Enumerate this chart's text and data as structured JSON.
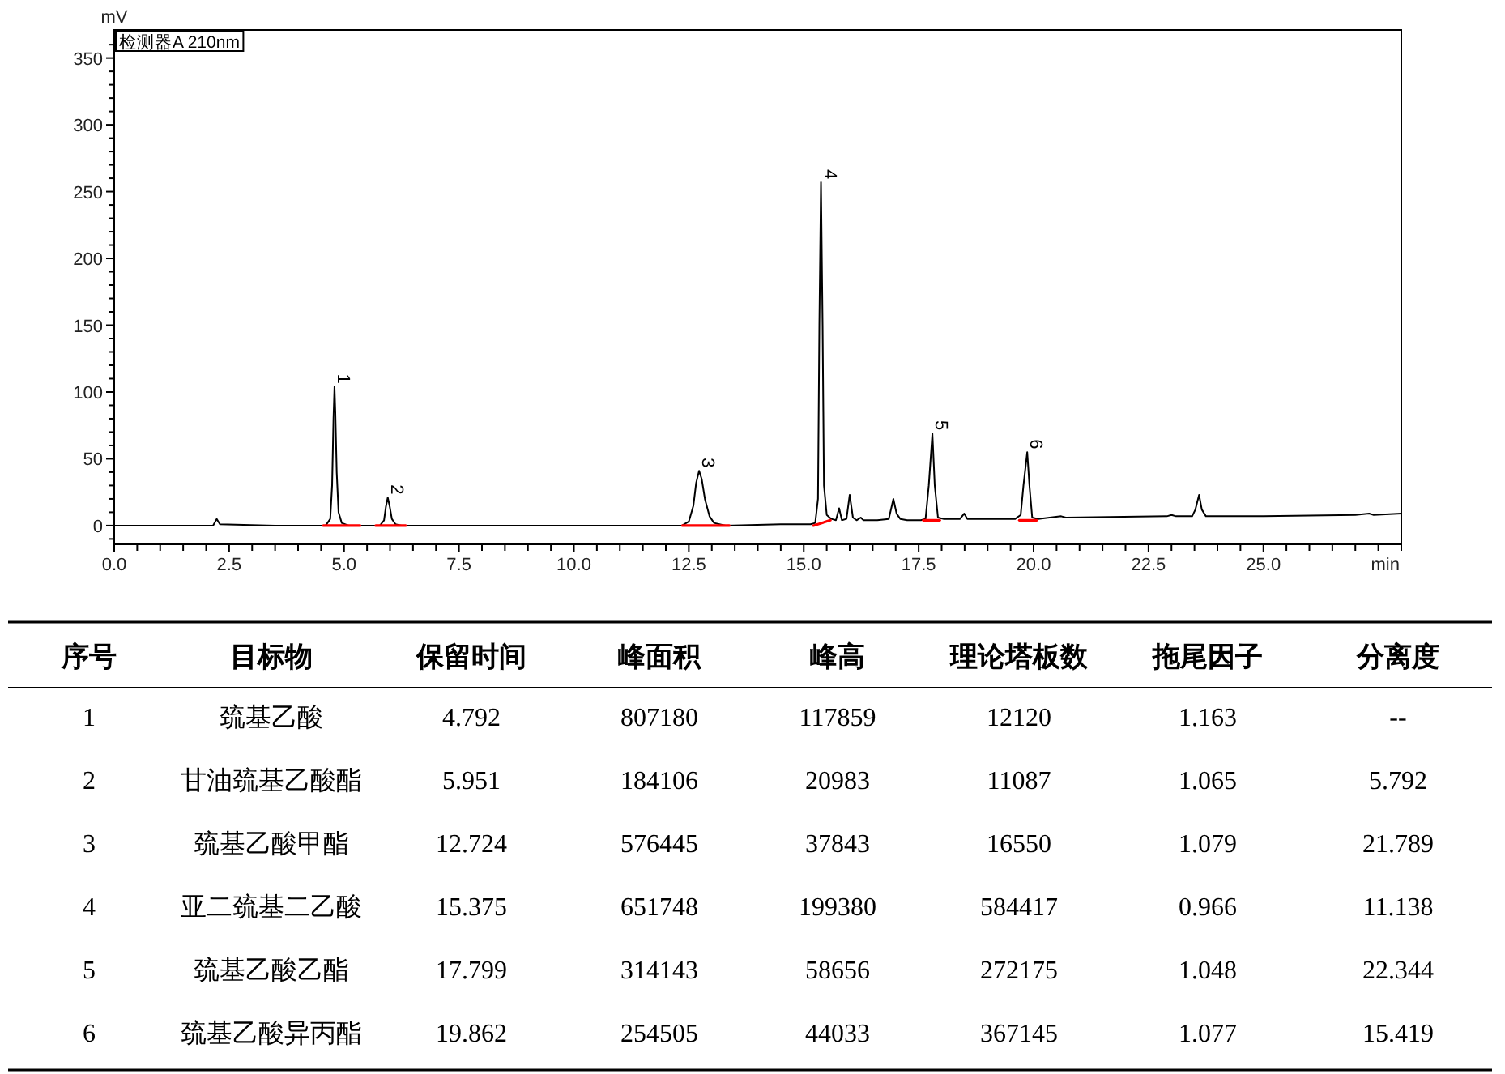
{
  "chart_data": [
    {
      "type": "line",
      "xlabel": "min",
      "ylabel": "mV",
      "xlim": [
        0,
        28
      ],
      "ylim": [
        -14,
        371
      ],
      "xticks": [
        {
          "value": 0,
          "label": "0.0"
        },
        {
          "value": 0.5,
          "label": null
        },
        {
          "value": 1,
          "label": null
        },
        {
          "value": 1.5,
          "label": null
        },
        {
          "value": 2,
          "label": null
        },
        {
          "value": 2.5,
          "label": "2.5"
        },
        {
          "value": 3,
          "label": null
        },
        {
          "value": 3.5,
          "label": null
        },
        {
          "value": 4,
          "label": null
        },
        {
          "value": 4.5,
          "label": null
        },
        {
          "value": 5,
          "label": "5.0"
        },
        {
          "value": 5.5,
          "label": null
        },
        {
          "value": 6,
          "label": null
        },
        {
          "value": 6.5,
          "label": null
        },
        {
          "value": 7,
          "label": null
        },
        {
          "value": 7.5,
          "label": "7.5"
        },
        {
          "value": 8,
          "label": null
        },
        {
          "value": 8.5,
          "label": null
        },
        {
          "value": 9,
          "label": null
        },
        {
          "value": 9.5,
          "label": null
        },
        {
          "value": 10,
          "label": "10.0"
        },
        {
          "value": 10.5,
          "label": null
        },
        {
          "value": 11,
          "label": null
        },
        {
          "value": 11.5,
          "label": null
        },
        {
          "value": 12,
          "label": null
        },
        {
          "value": 12.5,
          "label": "12.5"
        },
        {
          "value": 13,
          "label": null
        },
        {
          "value": 13.5,
          "label": null
        },
        {
          "value": 14,
          "label": null
        },
        {
          "value": 14.5,
          "label": null
        },
        {
          "value": 15,
          "label": "15.0"
        },
        {
          "value": 15.5,
          "label": null
        },
        {
          "value": 16,
          "label": null
        },
        {
          "value": 16.5,
          "label": null
        },
        {
          "value": 17,
          "label": null
        },
        {
          "value": 17.5,
          "label": "17.5"
        },
        {
          "value": 18,
          "label": null
        },
        {
          "value": 18.5,
          "label": null
        },
        {
          "value": 19,
          "label": null
        },
        {
          "value": 19.5,
          "label": null
        },
        {
          "value": 20,
          "label": "20.0"
        },
        {
          "value": 20.5,
          "label": null
        },
        {
          "value": 21,
          "label": null
        },
        {
          "value": 21.5,
          "label": null
        },
        {
          "value": 22,
          "label": null
        },
        {
          "value": 22.5,
          "label": "22.5"
        },
        {
          "value": 23,
          "label": null
        },
        {
          "value": 23.5,
          "label": null
        },
        {
          "value": 24,
          "label": null
        },
        {
          "value": 24.5,
          "label": null
        },
        {
          "value": 25,
          "label": "25.0"
        },
        {
          "value": 25.5,
          "label": null
        },
        {
          "value": 26,
          "label": null
        },
        {
          "value": 26.5,
          "label": null
        },
        {
          "value": 27,
          "label": null
        },
        {
          "value": 27.5,
          "label": null
        },
        {
          "value": 28,
          "label": null
        }
      ],
      "yticks": [
        {
          "value": -10,
          "label": null
        },
        0,
        {
          "value": 10,
          "label": null
        },
        {
          "value": 20,
          "label": null
        },
        {
          "value": 30,
          "label": null
        },
        {
          "value": 40,
          "label": null
        },
        50,
        {
          "value": 60,
          "label": null
        },
        {
          "value": 70,
          "label": null
        },
        {
          "value": 80,
          "label": null
        },
        {
          "value": 90,
          "label": null
        },
        100,
        {
          "value": 110,
          "label": null
        },
        {
          "value": 120,
          "label": null
        },
        {
          "value": 130,
          "label": null
        },
        {
          "value": 140,
          "label": null
        },
        150,
        {
          "value": 160,
          "label": null
        },
        {
          "value": 170,
          "label": null
        },
        {
          "value": 180,
          "label": null
        },
        {
          "value": 190,
          "label": null
        },
        200,
        {
          "value": 210,
          "label": null
        },
        {
          "value": 220,
          "label": null
        },
        {
          "value": 230,
          "label": null
        },
        {
          "value": 240,
          "label": null
        },
        250,
        {
          "value": 260,
          "label": null
        },
        {
          "value": 270,
          "label": null
        },
        {
          "value": 280,
          "label": null
        },
        {
          "value": 290,
          "label": null
        },
        300,
        {
          "value": 310,
          "label": null
        },
        {
          "value": 320,
          "label": null
        },
        {
          "value": 330,
          "label": null
        },
        {
          "value": 340,
          "label": null
        },
        350,
        {
          "value": 360,
          "label": null
        }
      ],
      "annotations": [
        "检测器A 210nm",
        {
          "text": "1",
          "x": 4.792,
          "y": 104
        },
        {
          "text": "2",
          "x": 5.951,
          "y": 21
        },
        {
          "text": "3",
          "x": 12.724,
          "y": 41
        },
        {
          "text": "4",
          "x": 15.375,
          "y": 257
        },
        {
          "text": "5",
          "x": 17.799,
          "y": 69
        },
        {
          "text": "6",
          "x": 19.862,
          "y": 55
        }
      ],
      "series": [
        {
          "color": "#000000",
          "x": [
            0,
            2.15,
            2.23,
            2.3,
            3.5,
            4.6,
            4.7,
            4.74,
            4.77,
            4.792,
            4.81,
            4.84,
            4.88,
            4.95,
            5.1,
            5.78,
            5.87,
            5.91,
            5.951,
            5.99,
            6.04,
            6.12,
            6.25,
            9,
            12.35,
            12.5,
            12.6,
            12.66,
            12.724,
            12.78,
            12.85,
            12.95,
            13.05,
            13.3,
            14.5,
            15.15,
            15.25,
            15.31,
            15.34,
            15.375,
            15.41,
            15.44,
            15.5,
            15.6,
            15.7,
            15.77,
            15.83,
            15.93,
            16,
            16.07,
            16.15,
            16.24,
            16.3,
            16.6,
            16.85,
            16.95,
            17.02,
            17.1,
            17.25,
            17.55,
            17.65,
            17.72,
            17.799,
            17.85,
            17.92,
            18.05,
            18.4,
            18.49,
            18.56,
            19,
            19.6,
            19.72,
            19.78,
            19.862,
            19.91,
            19.97,
            20.1,
            20.6,
            20.7,
            22.9,
            23,
            23.1,
            23.45,
            23.52,
            23.6,
            23.66,
            23.75,
            25,
            27,
            27.3,
            27.4,
            28
          ],
          "values": [
            0,
            0,
            5,
            1,
            0,
            0,
            5,
            30,
            80,
            104,
            85,
            40,
            10,
            2,
            0,
            0,
            4,
            14,
            21,
            15,
            5,
            1,
            0,
            0,
            0,
            3,
            15,
            32,
            41,
            35,
            20,
            7,
            2,
            0,
            1,
            1,
            2,
            20,
            150,
            257,
            150,
            30,
            8,
            5,
            4,
            13,
            4,
            5,
            23,
            6,
            4,
            6,
            4,
            4,
            5,
            20,
            9,
            5,
            4,
            4,
            5,
            30,
            69,
            30,
            6,
            5,
            5,
            9,
            5,
            5,
            5,
            8,
            30,
            55,
            30,
            6,
            5,
            7,
            6,
            7,
            8,
            7,
            7,
            12,
            23,
            12,
            7,
            7,
            8,
            9,
            8,
            9
          ]
        },
        {
          "color": "#ff0000",
          "x": [
            4.55,
            5.35
          ],
          "values": [
            0,
            0
          ]
        },
        {
          "color": "#ff0000",
          "x": [
            5.69,
            6.34
          ],
          "values": [
            0,
            0
          ]
        },
        {
          "color": "#ff0000",
          "x": [
            12.36,
            13.38
          ],
          "values": [
            0,
            0
          ]
        },
        {
          "color": "#ff0000",
          "x": [
            15.21,
            15.58
          ],
          "values": [
            0,
            4
          ]
        },
        {
          "color": "#ff0000",
          "x": [
            17.6,
            17.96
          ],
          "values": [
            4,
            4
          ]
        },
        {
          "color": "#ff0000",
          "x": [
            19.69,
            20.07
          ],
          "values": [
            4,
            4
          ]
        }
      ]
    },
    {
      "type": "heatmap",
      "ylabel": "序号",
      "categories": [
        "目标物",
        "保留时间",
        "峰面积",
        "峰高",
        "理论塔板数",
        "拖尾因子",
        "分离度"
      ],
      "y_categories": [
        "1",
        "2",
        "3",
        "4",
        "5",
        "6"
      ],
      "cells": [
        [
          null,
          null,
          null,
          null,
          null,
          null,
          null
        ],
        [
          null,
          null,
          null,
          null,
          null,
          null,
          null
        ],
        [
          null,
          null,
          null,
          null,
          null,
          null,
          null
        ],
        [
          null,
          null,
          null,
          null,
          null,
          null,
          null
        ],
        [
          null,
          null,
          null,
          null,
          null,
          null,
          null
        ],
        [
          null,
          null,
          null,
          null,
          null,
          null,
          null
        ]
      ],
      "cell_labels": [
        [
          "巯基乙酸",
          "4.792",
          "807180",
          "117859",
          "12120",
          "1.163",
          "--"
        ],
        [
          "甘油巯基乙酸酯",
          "5.951",
          "184106",
          "20983",
          "11087",
          "1.065",
          "5.792"
        ],
        [
          "巯基乙酸甲酯",
          "12.724",
          "576445",
          "37843",
          "16550",
          "1.079",
          "21.789"
        ],
        [
          "亚二巯基二乙酸",
          "15.375",
          "651748",
          "199380",
          "584417",
          "0.966",
          "11.138"
        ],
        [
          "巯基乙酸乙酯",
          "17.799",
          "314143",
          "58656",
          "272175",
          "1.048",
          "22.344"
        ],
        [
          "巯基乙酸异丙酯",
          "19.862",
          "254505",
          "44033",
          "367145",
          "1.077",
          "15.419"
        ]
      ]
    }
  ]
}
